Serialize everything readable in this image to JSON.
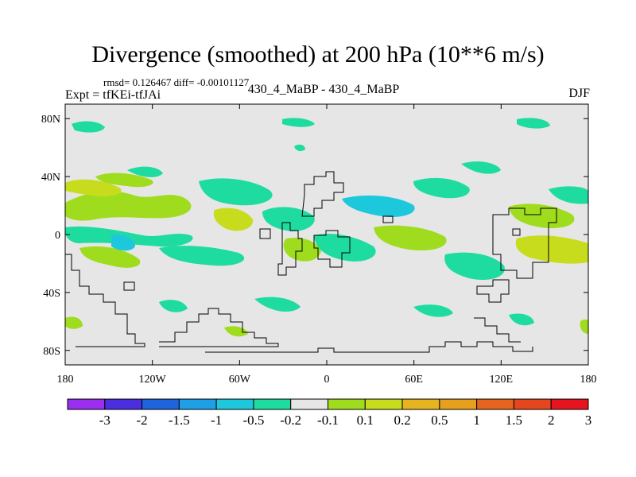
{
  "title": "Divergence (smoothed) at 200 hPa (10**6 m/s)",
  "stats": "rmsd= 0.126467 diff= -0.00101127",
  "left_label": "Expt = tfKEi-tfJAi",
  "center_label": "430_4_MaBP - 430_4_MaBP",
  "season": "DJF",
  "map": {
    "lon_range": [
      -180,
      180
    ],
    "lat_range": [
      -90,
      90
    ],
    "x_ticks": [
      "180",
      "120W",
      "60W",
      "0",
      "60E",
      "120E",
      "180"
    ],
    "y_ticks": [
      "80N",
      "40N",
      "0",
      "40S",
      "80S"
    ],
    "background_color": "#e6e6e6"
  },
  "colorbar": {
    "colors": [
      "#9a2ff0",
      "#4b2ee0",
      "#1e64dc",
      "#1ea0e6",
      "#1ec8dc",
      "#1edca0",
      "#e6e6e6",
      "#a0dc1e",
      "#c8dc1e",
      "#e6b41e",
      "#e6a01e",
      "#e6641e",
      "#e6461e",
      "#e6141e"
    ],
    "labels": [
      "-3",
      "-2",
      "-1.5",
      "-1",
      "-0.5",
      "-0.2",
      "-0.1",
      "0.1",
      "0.2",
      "0.5",
      "1",
      "1.5",
      "2",
      "3"
    ]
  }
}
